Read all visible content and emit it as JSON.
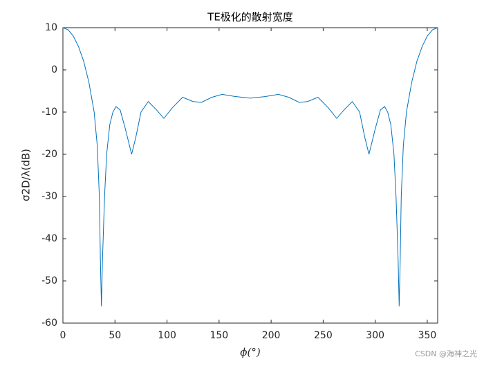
{
  "chart_data": {
    "type": "line",
    "title": "TE极化的散射宽度",
    "xlabel": "ϕ(°)",
    "ylabel": "σ2D/λ(dB)",
    "watermark": "CSDN @海神之光",
    "x": [
      0,
      5,
      10,
      15,
      20,
      25,
      30,
      33,
      35,
      36,
      37,
      38,
      40,
      42,
      45,
      48,
      51,
      55,
      60,
      66,
      70,
      75,
      82,
      90,
      97,
      105,
      115,
      125,
      133,
      143,
      153,
      165,
      180,
      195,
      207,
      217,
      227,
      235,
      245,
      255,
      263,
      270,
      278,
      285,
      290,
      294,
      300,
      305,
      309,
      312,
      315,
      318,
      320,
      322,
      323,
      324,
      325,
      327,
      330,
      335,
      340,
      345,
      350,
      355,
      360
    ],
    "series": [
      {
        "color": "#0072bd",
        "values": [
          10,
          9.5,
          8,
          5.5,
          2,
          -3,
          -10,
          -18,
          -30,
          -45,
          -56,
          -45,
          -30,
          -20,
          -13,
          -10,
          -8.7,
          -9.5,
          -14,
          -20,
          -16,
          -10,
          -7.5,
          -9.5,
          -11.5,
          -9,
          -6.5,
          -7.5,
          -7.7,
          -6.5,
          -5.8,
          -6.3,
          -6.7,
          -6.3,
          -5.8,
          -6.5,
          -7.7,
          -7.5,
          -6.5,
          -9,
          -11.5,
          -9.5,
          -7.5,
          -10,
          -16,
          -20,
          -14,
          -9.5,
          -8.7,
          -10,
          -13,
          -20,
          -30,
          -45,
          -56,
          -45,
          -30,
          -18,
          -10,
          -3,
          2,
          5.5,
          8,
          9.5,
          10
        ]
      }
    ],
    "xlim": [
      0,
      360
    ],
    "xticks": [
      0,
      50,
      100,
      150,
      200,
      250,
      300,
      350
    ],
    "ylim": [
      -60,
      10
    ],
    "yticks": [
      -60,
      -50,
      -40,
      -30,
      -20,
      -10,
      0,
      10
    ]
  }
}
